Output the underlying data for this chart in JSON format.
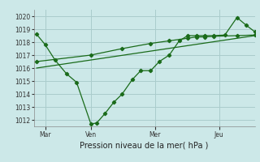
{
  "title": "Pression niveau de la mer( hPa )",
  "bg_color": "#cce8e8",
  "grid_color": "#aacccc",
  "line_color": "#1a6b1a",
  "ylim": [
    1011.5,
    1020.5
  ],
  "yticks": [
    1012,
    1013,
    1014,
    1015,
    1016,
    1017,
    1018,
    1019,
    1020
  ],
  "xtick_labels": [
    "Mar",
    "Ven",
    "Mer",
    "Jeu"
  ],
  "xtick_pos": [
    16,
    80,
    170,
    260
  ],
  "xlim": [
    0,
    310
  ],
  "line1_x": [
    4,
    16,
    30,
    46,
    60,
    80,
    88,
    100,
    112,
    124,
    138,
    150,
    164,
    176,
    190,
    204,
    216,
    228,
    240,
    252,
    268,
    285,
    298,
    310
  ],
  "line1_y": [
    1018.6,
    1017.8,
    1016.6,
    1015.55,
    1014.9,
    1011.7,
    1011.75,
    1012.5,
    1013.35,
    1014.0,
    1015.1,
    1015.8,
    1015.8,
    1016.5,
    1017.0,
    1018.1,
    1018.5,
    1018.5,
    1018.5,
    1018.5,
    1018.55,
    1019.9,
    1019.3,
    1018.8
  ],
  "line2_x": [
    4,
    80,
    124,
    164,
    190,
    216,
    228,
    240,
    252,
    285,
    310
  ],
  "line2_y": [
    1016.5,
    1017.0,
    1017.5,
    1017.9,
    1018.1,
    1018.3,
    1018.4,
    1018.4,
    1018.45,
    1018.5,
    1018.55
  ],
  "line3_x": [
    4,
    310
  ],
  "line3_y": [
    1016.0,
    1018.5
  ],
  "ylabel_fontsize": 4.5,
  "xlabel_fontsize": 7.0,
  "tick_fontsize": 5.5
}
